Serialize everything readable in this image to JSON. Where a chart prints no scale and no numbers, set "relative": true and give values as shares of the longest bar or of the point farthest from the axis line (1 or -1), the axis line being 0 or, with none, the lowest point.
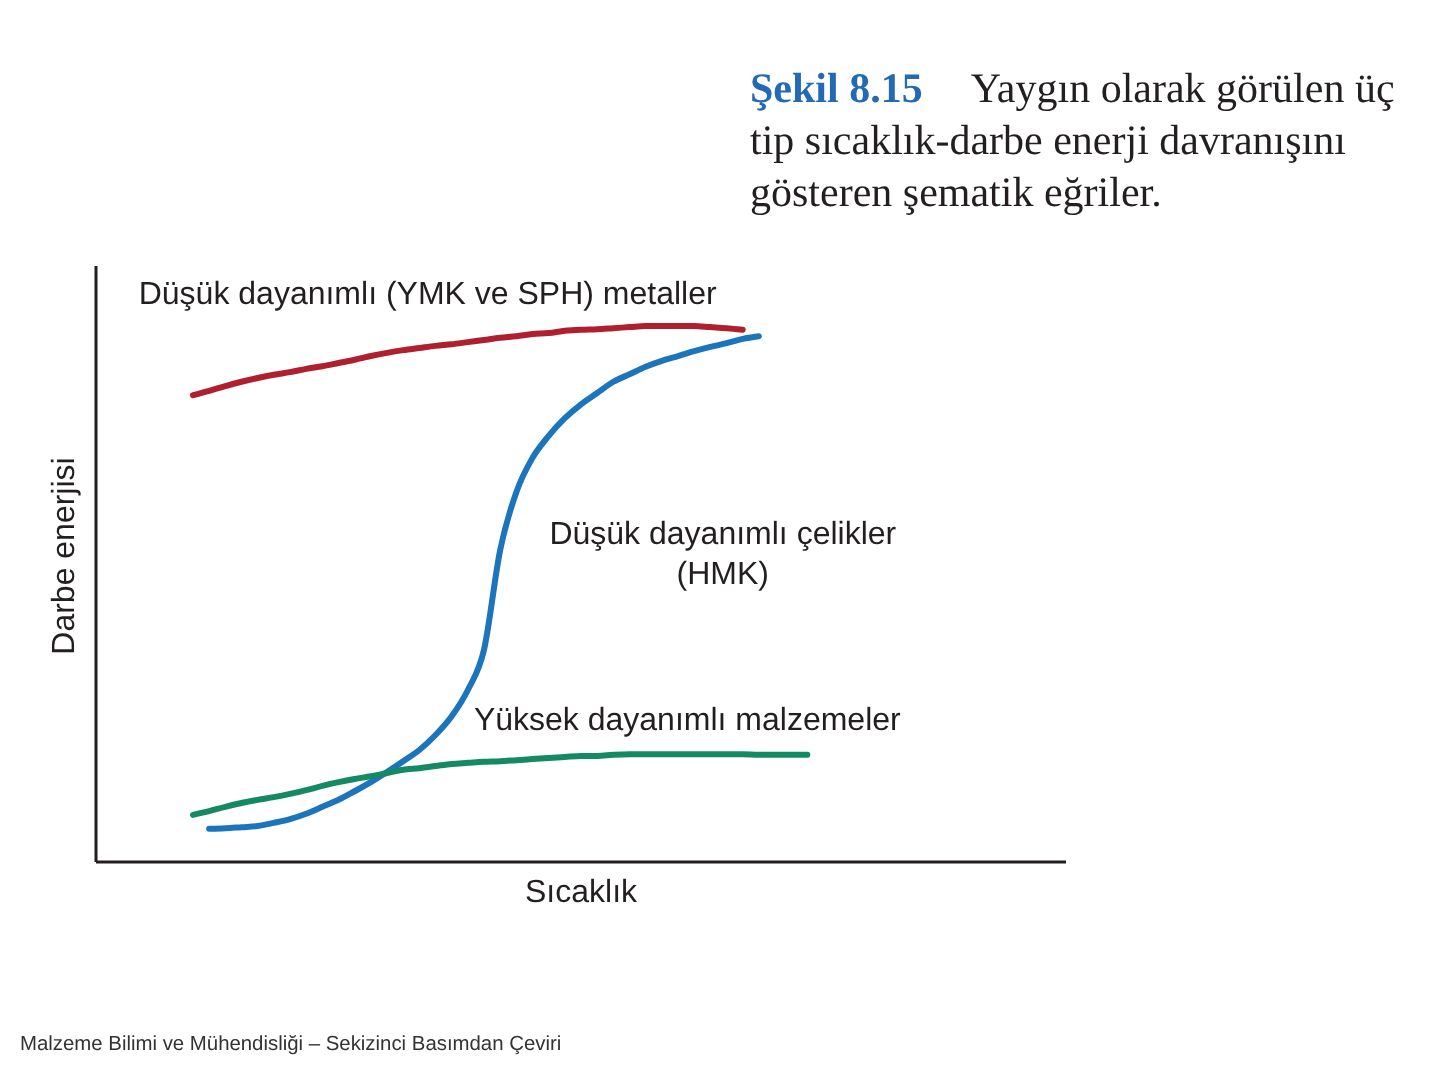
{
  "chart_data": {
    "type": "line",
    "title": "Şekil 8.15 Yaygın olarak görülen üç tip sıcaklık-darbe enerji davranışını gösteren şematik eğriler.",
    "xlabel": "Sıcaklık",
    "ylabel": "Darbe enerjisi",
    "annotations": [
      "Malzeme Bilimi ve Mühendisliği – Sekizinci Basımdan Çeviri"
    ],
    "relative": true,
    "categories": [
      null,
      null,
      null,
      null,
      null,
      null,
      null,
      null,
      null,
      null,
      null,
      null,
      null,
      null,
      null,
      null,
      null,
      null,
      null,
      null,
      null,
      null,
      null,
      null,
      null,
      null,
      null,
      null,
      null,
      null,
      null,
      null,
      null,
      null,
      null,
      null,
      null,
      null,
      null,
      null,
      null,
      null,
      null,
      null,
      null,
      null,
      null,
      null,
      null,
      null,
      null,
      null,
      null,
      null,
      null,
      null,
      null,
      null,
      null,
      null,
      null
    ],
    "series": [
      {
        "name": "Düşük dayanımlı (YMK ve SPH) metaller",
        "color": "#b01f2e",
        "values": [
          null,
          null,
          null,
          null,
          null,
          null,
          0.871,
          0.879,
          0.888,
          0.896,
          0.903,
          0.909,
          0.914,
          0.92,
          0.925,
          0.931,
          0.937,
          0.944,
          0.95,
          0.955,
          0.959,
          0.963,
          0.966,
          0.97,
          0.974,
          0.978,
          0.981,
          0.985,
          0.987,
          0.991,
          0.993,
          0.994,
          0.996,
          0.998,
          1.0,
          1.0,
          1.0,
          1.0,
          0.998,
          0.996,
          0.993,
          null,
          null,
          null,
          null,
          null,
          null,
          null,
          null,
          null,
          null,
          null,
          null,
          null,
          null,
          null,
          null,
          null,
          null,
          null,
          null
        ]
      },
      {
        "name": "Düşük dayanımlı çelikler (HMK)",
        "color": "#1b75bc",
        "values": [
          null,
          null,
          null,
          null,
          null,
          null,
          null,
          0.062,
          0.063,
          0.065,
          0.067,
          0.073,
          0.08,
          0.09,
          0.103,
          0.116,
          0.132,
          0.149,
          0.168,
          0.188,
          0.209,
          0.237,
          0.272,
          0.321,
          0.396,
          0.582,
          0.69,
          0.754,
          0.795,
          0.828,
          0.854,
          0.875,
          0.896,
          0.91,
          0.924,
          0.935,
          0.944,
          0.953,
          0.961,
          0.968,
          0.976,
          0.981,
          null,
          null,
          null,
          null,
          null,
          null,
          null,
          null,
          null,
          null,
          null,
          null,
          null,
          null,
          null,
          null,
          null,
          null,
          null
        ]
      },
      {
        "name": "Yüksek dayanımlı malzemeler",
        "color": "#138a63",
        "values": [
          null,
          null,
          null,
          null,
          null,
          null,
          0.088,
          0.095,
          0.103,
          0.11,
          0.116,
          0.121,
          0.127,
          0.134,
          0.142,
          0.149,
          0.155,
          0.16,
          0.166,
          0.172,
          0.175,
          0.179,
          0.183,
          0.185,
          0.187,
          0.188,
          0.19,
          0.192,
          0.194,
          0.196,
          0.198,
          0.198,
          0.2,
          0.201,
          0.201,
          0.201,
          0.201,
          0.201,
          0.201,
          0.201,
          0.201,
          0.2,
          0.2,
          0.2,
          0.2,
          null,
          null,
          null,
          null,
          null,
          null,
          null,
          null,
          null,
          null,
          null,
          null,
          null,
          null,
          null,
          null
        ]
      }
    ]
  }
}
